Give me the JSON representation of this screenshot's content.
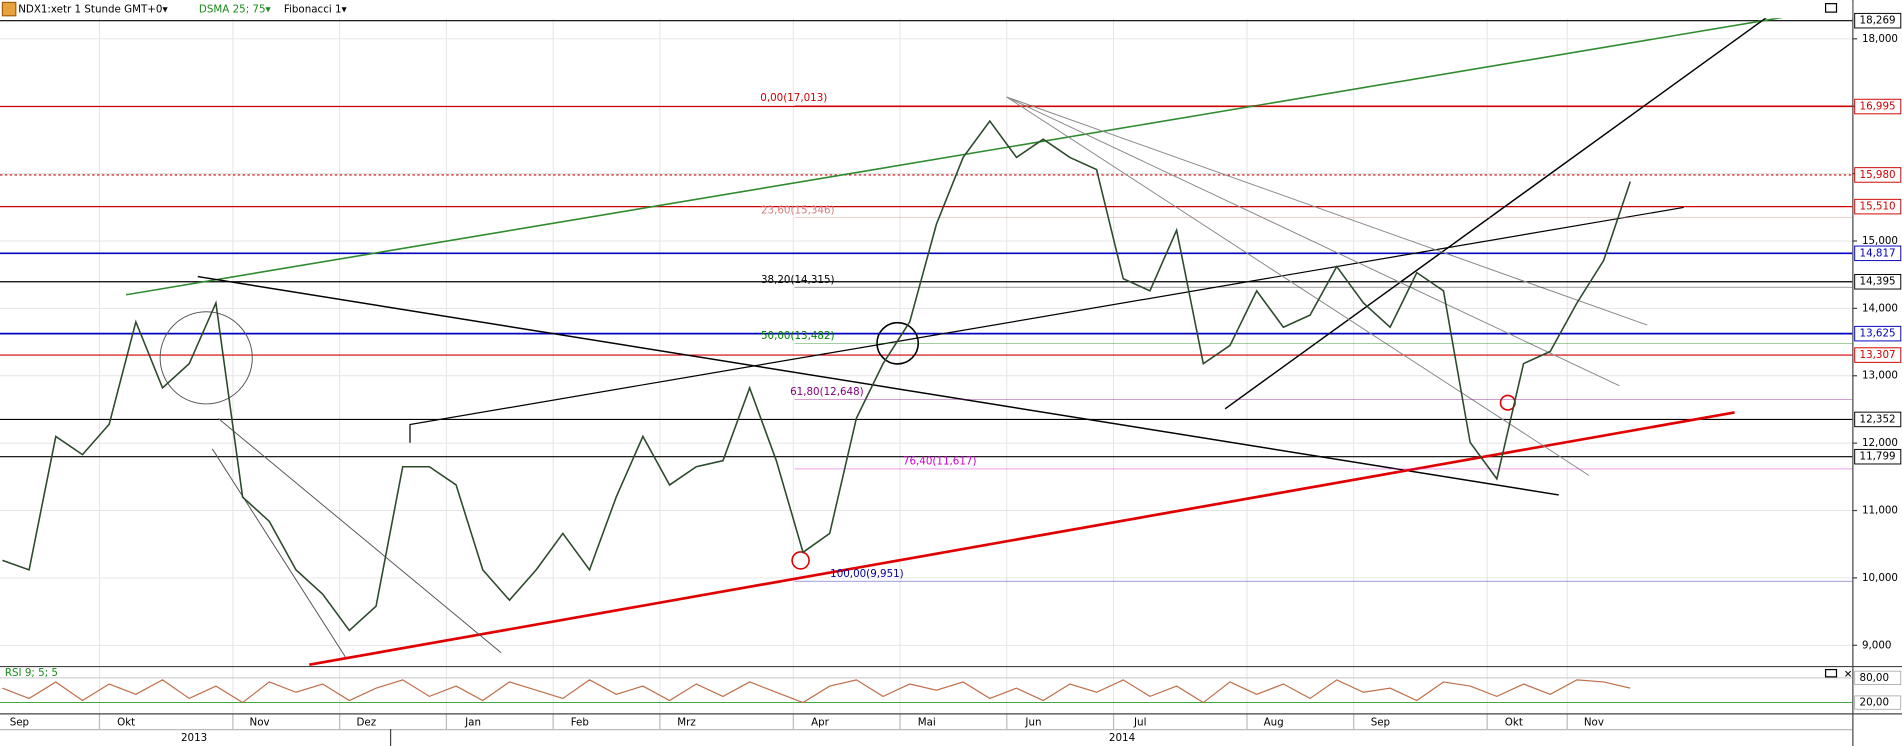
{
  "toolbar": {
    "symbol": "NDX1:xetr 1 Stunde GMT+0▾",
    "indicator": "DSMA 25; 75▾",
    "tool": "Fibonacci 1▾"
  },
  "chart_data": [
    {
      "type": "line",
      "categories": [
        "Sep",
        null,
        null,
        null,
        "Okt",
        null,
        null,
        null,
        null,
        "Nov",
        null,
        null,
        null,
        "Dez",
        null,
        null,
        null,
        "Jan",
        null,
        null,
        null,
        "Feb",
        null,
        null,
        null,
        "Mrz",
        null,
        null,
        null,
        null,
        "Apr",
        null,
        null,
        null,
        "Mai",
        null,
        null,
        null,
        "Jun",
        null,
        null,
        null,
        "Jul",
        null,
        null,
        null,
        null,
        "Aug",
        null,
        null,
        null,
        "Sep",
        null,
        null,
        null,
        null,
        "Okt",
        null,
        null,
        "Nov",
        null,
        null
      ],
      "series": [
        {
          "color": "#2d4a2d",
          "values": [
            10260,
            10120,
            12100,
            11830,
            12280,
            13800,
            12820,
            13180,
            14080,
            11200,
            10840,
            10120,
            9760,
            9220,
            9580,
            11650,
            11650,
            11380,
            10120,
            9670,
            10120,
            10660,
            10120,
            11200,
            12100,
            11380,
            11650,
            11740,
            12820,
            11740,
            10380,
            10660,
            12370,
            13180,
            13800,
            15250,
            16240,
            16780,
            16240,
            16510,
            16240,
            16060,
            14440,
            14260,
            15160,
            13180,
            13450,
            14260,
            13720,
            13900,
            14620,
            14080,
            13720,
            14530,
            14260,
            12010,
            11470,
            13180,
            13360,
            14080,
            14710,
            15880
          ]
        }
      ],
      "year_labels": [
        "2013",
        "2014"
      ],
      "ylim": [
        8712,
        18432
      ],
      "yticks": [
        {
          "value": 9000,
          "label": "9,000"
        },
        {
          "value": 10000,
          "label": "10,000"
        },
        {
          "value": 11000,
          "label": "11,000"
        },
        {
          "value": 12000,
          "label": "12,000"
        },
        {
          "value": 13000,
          "label": "13,000"
        },
        {
          "value": 14000,
          "label": "14,000"
        },
        {
          "value": 15000,
          "label": "15,000"
        },
        {
          "value": 16000,
          "label": "16,000"
        },
        {
          "value": 17000,
          "label": "17,000"
        },
        {
          "value": 18000,
          "label": "18,000"
        }
      ],
      "grid": true,
      "levels": [
        {
          "value": 18269,
          "label": "18,269",
          "color": "#000000",
          "style": "solid"
        },
        {
          "value": 16995,
          "label": "16,995",
          "color": "#d00000",
          "style": "solid"
        },
        {
          "value": 15980,
          "label": "15,980",
          "color": "#d00000",
          "style": "dotted"
        },
        {
          "value": 15510,
          "label": "15,510",
          "color": "#d00000",
          "style": "solid"
        },
        {
          "value": 14817,
          "label": "14,817",
          "color": "#0000c0",
          "style": "solid"
        },
        {
          "value": 14395,
          "label": "14,395",
          "color": "#000000",
          "style": "solid"
        },
        {
          "value": 13625,
          "label": "13,625",
          "color": "#0000c0",
          "style": "solid"
        },
        {
          "value": 13307,
          "label": "13,307",
          "color": "#d00000",
          "style": "solid"
        },
        {
          "value": 12352,
          "label": "12,352",
          "color": "#000000",
          "style": "solid"
        },
        {
          "value": 11799,
          "label": "11,799",
          "color": "#000000",
          "style": "solid"
        }
      ],
      "fibonacci": [
        {
          "value": 17013,
          "label": "0,00(17,013)",
          "color": "#d00000"
        },
        {
          "value": 15346,
          "label": "23,60(15,346)",
          "color": "#d08080"
        },
        {
          "value": 14315,
          "label": "38,20(14,315)",
          "color": "#000000"
        },
        {
          "value": 13482,
          "label": "50,00(13,482)",
          "color": "#008000"
        },
        {
          "value": 12648,
          "label": "61,80(12,648)",
          "color": "#800080"
        },
        {
          "value": 11617,
          "label": "76,40(11,617)",
          "color": "#d000d0"
        },
        {
          "value": 9951,
          "label": "100,00(9,951)",
          "color": "#0000a0"
        }
      ]
    },
    {
      "type": "line",
      "title": "RSI 9; 5; 5",
      "series": [
        {
          "color": "#c0704a",
          "values": [
            55,
            30,
            70,
            25,
            65,
            40,
            75,
            30,
            60,
            20,
            70,
            45,
            65,
            25,
            55,
            75,
            35,
            60,
            25,
            70,
            50,
            30,
            75,
            40,
            60,
            25,
            65,
            35,
            70,
            45,
            20,
            60,
            75,
            35,
            65,
            50,
            70,
            30,
            55,
            25,
            65,
            45,
            75,
            35,
            60,
            20,
            70,
            40,
            65,
            30,
            75,
            45,
            55,
            25,
            70,
            60,
            35,
            65,
            40,
            75,
            70,
            55
          ]
        }
      ],
      "ylim": [
        0,
        100
      ],
      "yticks": [
        {
          "value": 20,
          "label": "20,00"
        },
        {
          "value": 80,
          "label": "80,00"
        }
      ]
    }
  ]
}
